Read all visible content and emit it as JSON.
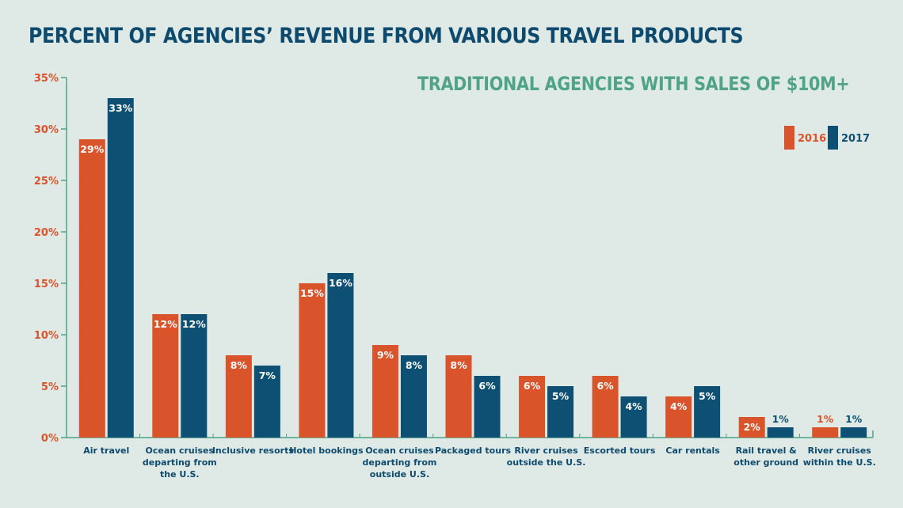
{
  "header": {
    "title": "PERCENT OF AGENCIES’ REVENUE FROM VARIOUS TRAVEL PRODUCTS",
    "subtitle": "TRADITIONAL AGENCIES WITH SALES OF $10M+"
  },
  "colors": {
    "series_2016": "#d9532b",
    "series_2017": "#0d5073",
    "axis": "#4fa387",
    "tick_text": "#d9532b",
    "category_text": "#0d4a6e",
    "title": "#0d4a6e",
    "subtitle": "#4fa387",
    "background": "#dfeae6"
  },
  "chart_data": {
    "type": "bar",
    "title": "PERCENT OF AGENCIES’ REVENUE FROM VARIOUS TRAVEL PRODUCTS",
    "subtitle": "TRADITIONAL AGENCIES WITH SALES OF $10M+",
    "xlabel": "",
    "ylabel": "",
    "ylim": [
      0,
      35
    ],
    "yticks": [
      0,
      5,
      10,
      15,
      20,
      25,
      30,
      35
    ],
    "ytick_labels": [
      "0%",
      "5%",
      "10%",
      "15%",
      "20%",
      "25%",
      "30%",
      "35%"
    ],
    "grid": false,
    "legend_position": "top-right",
    "categories": [
      [
        "Air travel"
      ],
      [
        "Ocean cruises",
        "departing from",
        "the U.S."
      ],
      [
        "Inclusive resorts"
      ],
      [
        "Hotel bookings"
      ],
      [
        "Ocean cruises",
        "departing from",
        "outside U.S."
      ],
      [
        "Packaged tours"
      ],
      [
        "River cruises",
        "outside the U.S."
      ],
      [
        "Escorted tours"
      ],
      [
        "Car rentals"
      ],
      [
        "Rail travel &",
        "other ground"
      ],
      [
        "River cruises",
        "within the U.S."
      ]
    ],
    "series": [
      {
        "name": "2016",
        "values": [
          29,
          12,
          8,
          15,
          9,
          8,
          6,
          6,
          4,
          2,
          1
        ],
        "labels": [
          "29%",
          "12%",
          "8%",
          "15%",
          "9%",
          "8%",
          "6%",
          "6%",
          "4%",
          "2%",
          "1%"
        ]
      },
      {
        "name": "2017",
        "values": [
          33,
          12,
          7,
          16,
          8,
          6,
          5,
          4,
          5,
          1,
          1
        ],
        "labels": [
          "33%",
          "12%",
          "7%",
          "16%",
          "8%",
          "6%",
          "5%",
          "4%",
          "5%",
          "1%",
          "1%"
        ]
      }
    ]
  }
}
